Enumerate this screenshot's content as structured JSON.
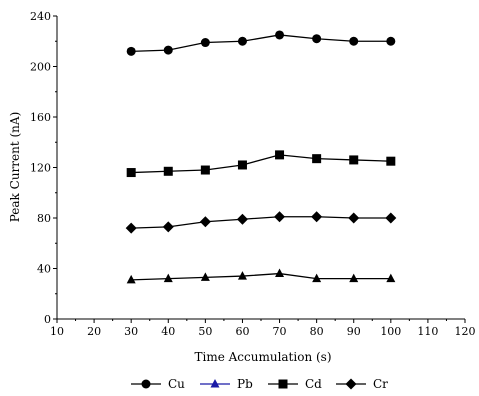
{
  "chart_data": {
    "type": "line",
    "xlabel": "Time Accumulation (s)",
    "ylabel": "Peak Current (nA)",
    "xlim": [
      10,
      120
    ],
    "ylim": [
      0,
      240
    ],
    "x_ticks": [
      10,
      20,
      30,
      40,
      50,
      60,
      70,
      80,
      90,
      100,
      110,
      120
    ],
    "y_ticks": [
      0,
      40,
      80,
      120,
      160,
      200,
      240
    ],
    "grid": false,
    "legend_position": "bottom",
    "x": [
      30,
      40,
      50,
      60,
      70,
      80,
      90,
      100
    ],
    "series": [
      {
        "name": "Cu",
        "marker": "circle",
        "color": "#000000",
        "values": [
          212,
          213,
          219,
          220,
          225,
          222,
          220,
          220
        ]
      },
      {
        "name": "Pb",
        "marker": "triangle",
        "color": "#000000",
        "legend_color": "#1a1aa6",
        "values": [
          31,
          32,
          33,
          34,
          36,
          32,
          32,
          32
        ]
      },
      {
        "name": "Cd",
        "marker": "square",
        "color": "#000000",
        "values": [
          116,
          117,
          118,
          122,
          130,
          127,
          126,
          125
        ]
      },
      {
        "name": "Cr",
        "marker": "diamond",
        "color": "#000000",
        "values": [
          72,
          73,
          77,
          79,
          81,
          81,
          80,
          80
        ]
      }
    ]
  }
}
